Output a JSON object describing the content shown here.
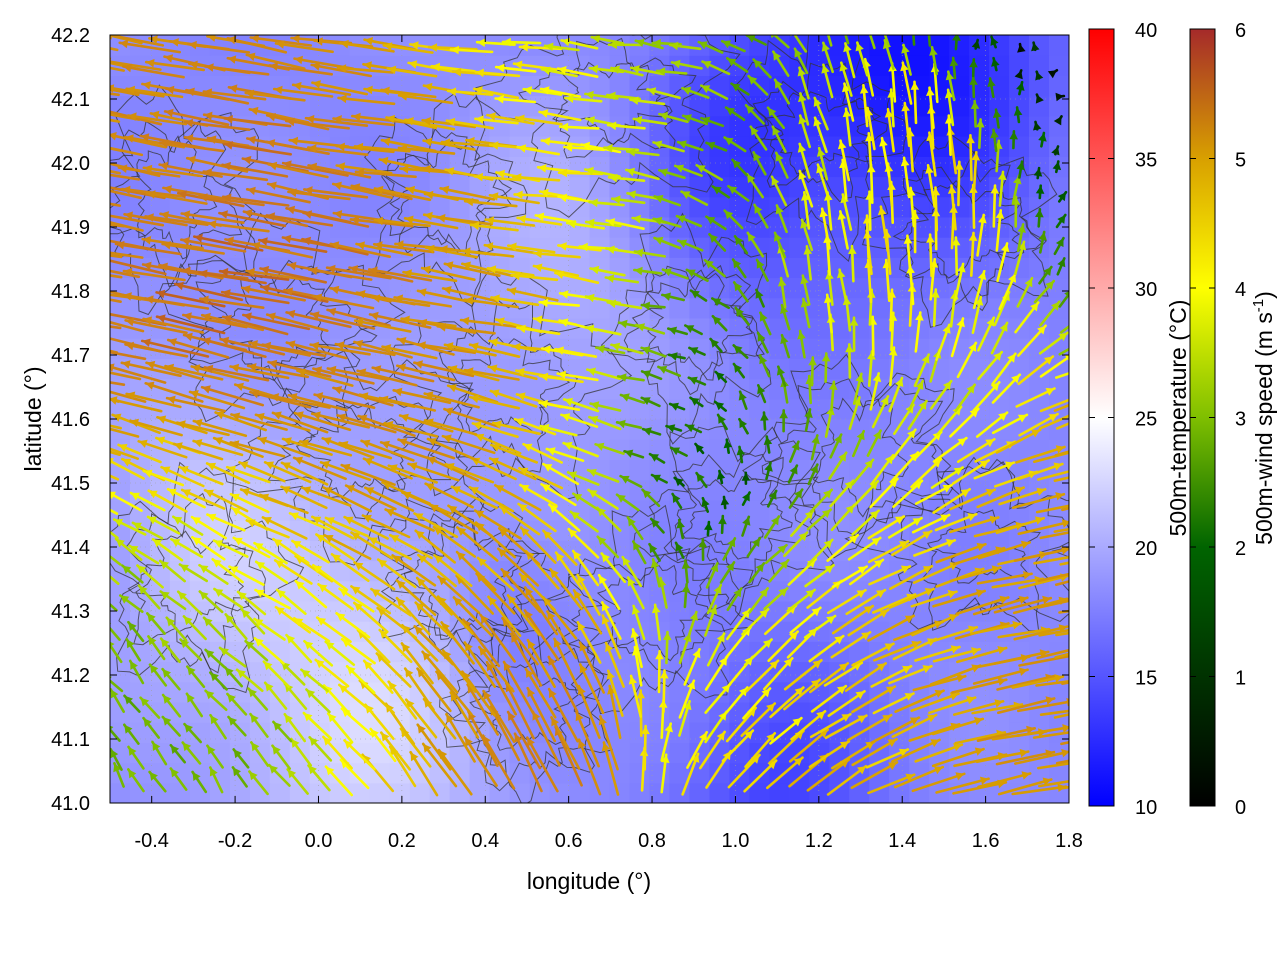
{
  "chart_data": {
    "type": "heatmap",
    "subtype": "scalar field with wind vector overlay and contours",
    "xlabel": "longitude (°)",
    "ylabel": "latitude (°)",
    "xlim": [
      -0.5,
      1.8
    ],
    "ylim": [
      41.0,
      42.2
    ],
    "x_ticks": [
      "-0.4",
      "-0.2",
      "0.0",
      "0.2",
      "0.4",
      "0.6",
      "0.8",
      "1.0",
      "1.2",
      "1.4",
      "1.6",
      "1.8"
    ],
    "y_ticks": [
      "41.0",
      "41.1",
      "41.2",
      "41.3",
      "41.4",
      "41.5",
      "41.6",
      "41.7",
      "41.8",
      "41.9",
      "42.0",
      "42.1",
      "42.2"
    ],
    "grid": "on (dotted)",
    "temperature_colorbar": {
      "label": "500m-temperature (°C)",
      "range": [
        10,
        40
      ],
      "ticks": [
        "10",
        "15",
        "20",
        "25",
        "30",
        "35",
        "40"
      ],
      "colors": [
        "#0000ff",
        "#ffffff",
        "#ff0000"
      ]
    },
    "wind_colorbar": {
      "label": "500m-wind speed (m s-1)",
      "label_main": "500m-wind speed (m s",
      "label_sup": "-1",
      "label_close": ")",
      "range": [
        0,
        6
      ],
      "ticks": [
        "0",
        "1",
        "2",
        "3",
        "4",
        "5",
        "6"
      ],
      "colors": [
        "#000000",
        "#006400",
        "#7fbf00",
        "#ffff00",
        "#d8a000",
        "#cc7a1a",
        "#a52a2a"
      ]
    },
    "temperature_field": {
      "description": "mostly 15–22 °C; warmest (~22 °C, near white) around lon -0.1–0.3, lat 41.0–41.3; coolest (~11–13 °C) along top edge near lon 1.4–1.8, lat 42.1–42.2",
      "background_c": 18,
      "patches": [
        {
          "lon": 0.1,
          "lat": 41.15,
          "temp_c": 22.5,
          "spread": 0.35
        },
        {
          "lon": -0.3,
          "lat": 41.45,
          "temp_c": 21,
          "spread": 0.25
        },
        {
          "lon": 0.6,
          "lat": 41.85,
          "temp_c": 20.5,
          "spread": 0.3
        },
        {
          "lon": 1.45,
          "lat": 42.18,
          "temp_c": 11,
          "spread": 0.3
        },
        {
          "lon": 1.0,
          "lat": 42.02,
          "temp_c": 13.5,
          "spread": 0.25
        },
        {
          "lon": 1.1,
          "lat": 41.0,
          "temp_c": 14,
          "spread": 0.25
        },
        {
          "lon": 0.45,
          "lat": 41.3,
          "temp_c": 16,
          "spread": 0.15
        }
      ]
    },
    "wind_field": {
      "units": "m s-1",
      "description": "strong easterly-to-westerly flow (4–6 m/s, from east blowing west) across lat 41.6–41.9; weak (~0–1.5 m/s) winds near lon 0.7–1.0, lat 41.4–41.7; moderate-strong eastward/northeastward winds (3–5 m/s) in south-east around lon 1.2–1.8, lat 41.0–41.3; northwestward winds (3–6 m/s) around lon 0.3–0.6, lat 41.0–41.5",
      "regimes": [
        {
          "lon": 0.0,
          "lat": 41.8,
          "u": -5.8,
          "v": 0.9,
          "r": 0.45
        },
        {
          "lon": 0.5,
          "lat": 41.88,
          "u": -5.0,
          "v": 0.5,
          "r": 0.35
        },
        {
          "lon": 0.3,
          "lat": 41.6,
          "u": -5.0,
          "v": 1.2,
          "r": 0.35
        },
        {
          "lon": 0.5,
          "lat": 41.2,
          "u": -2.2,
          "v": 5.0,
          "r": 0.3
        },
        {
          "lon": 0.1,
          "lat": 41.3,
          "u": -1.5,
          "v": 2.0,
          "r": 0.35
        },
        {
          "lon": 0.85,
          "lat": 41.6,
          "u": -0.5,
          "v": 0.0,
          "r": 0.3
        },
        {
          "lon": 0.6,
          "lat": 42.05,
          "u": -1.5,
          "v": 0.2,
          "r": 0.45
        },
        {
          "lon": 1.3,
          "lat": 41.8,
          "u": -0.4,
          "v": 3.5,
          "r": 0.3
        },
        {
          "lon": 1.6,
          "lat": 41.2,
          "u": 4.2,
          "v": 0.8,
          "r": 0.4
        },
        {
          "lon": 1.1,
          "lat": 41.15,
          "u": 2.5,
          "v": 2.5,
          "r": 0.3
        },
        {
          "lon": -0.3,
          "lat": 41.2,
          "u": -0.8,
          "v": 1.5,
          "r": 0.3
        },
        {
          "lon": -0.3,
          "lat": 42.1,
          "u": -4.0,
          "v": 0.8,
          "r": 0.3
        }
      ]
    },
    "contours": {
      "color": "#333333",
      "description": "thin dark terrain/height contour lines throughout"
    }
  }
}
